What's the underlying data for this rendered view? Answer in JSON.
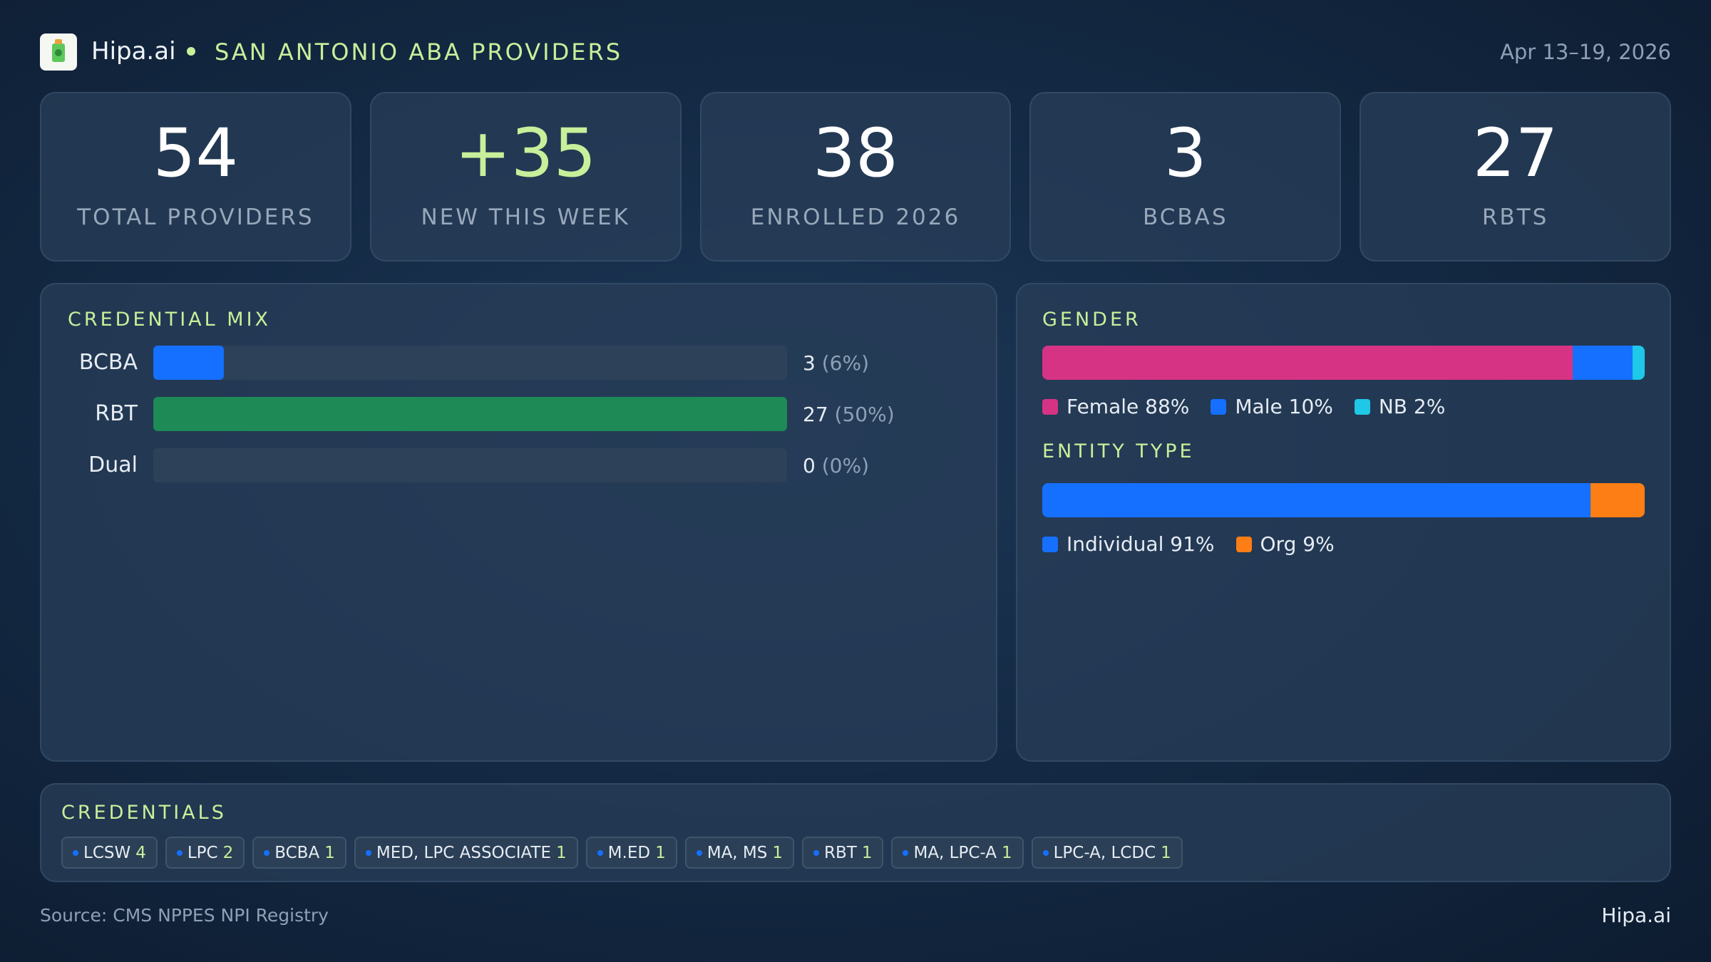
{
  "header": {
    "brand": "Hipa.ai",
    "title": "SAN ANTONIO ABA PROVIDERS",
    "date": "Apr 13–19, 2026"
  },
  "kpis": [
    {
      "value": 54,
      "label": "TOTAL PROVIDERS"
    },
    {
      "value": "+35",
      "label": "NEW THIS WEEK"
    },
    {
      "value": 38,
      "label": "ENROLLED 2026"
    },
    {
      "value": 3,
      "label": "BCBAS"
    },
    {
      "value": 27,
      "label": "RBTS"
    }
  ],
  "credential_mix": {
    "title": "CREDENTIAL MIX",
    "categories": [
      "BCBA",
      "RBT",
      "Dual"
    ],
    "values": [
      3,
      27,
      0
    ],
    "shares": [
      "(6%)",
      "(50%)",
      "(0%)"
    ],
    "colors": [
      "#1570ff",
      "#1e8a55",
      "#1570ff"
    ]
  },
  "gender": {
    "title": "GENDER",
    "series": [
      {
        "name": "Female",
        "color": "#d63384",
        "value": 88,
        "label": "88%"
      },
      {
        "name": "Male",
        "color": "#1570ff",
        "value": 10,
        "label": "10%"
      },
      {
        "name": "NB",
        "color": "#1ec8e6",
        "value": 2,
        "label": "2%"
      }
    ]
  },
  "entity_type": {
    "title": "ENTITY TYPE",
    "series": [
      {
        "name": "Individual",
        "color": "#1570ff",
        "value": 91,
        "label": "91%"
      },
      {
        "name": "Org",
        "color": "#fd7e14",
        "value": 9,
        "label": "9%"
      }
    ]
  },
  "credentials": {
    "title": "CREDENTIALS",
    "items": [
      {
        "name": "LCSW",
        "count": 4
      },
      {
        "name": "LPC",
        "count": 2
      },
      {
        "name": "BCBA",
        "count": 1
      },
      {
        "name": "MED, LPC ASSOCIATE",
        "count": 1
      },
      {
        "name": "M.ED",
        "count": 1
      },
      {
        "name": "MA, MS",
        "count": 1
      },
      {
        "name": "RBT",
        "count": 1
      },
      {
        "name": "MA, LPC-A",
        "count": 1
      },
      {
        "name": "LPC-A, LCDC",
        "count": 1
      }
    ]
  },
  "footer": {
    "source": "Source: CMS NPPES NPI Registry",
    "brand": "Hipa.ai"
  }
}
